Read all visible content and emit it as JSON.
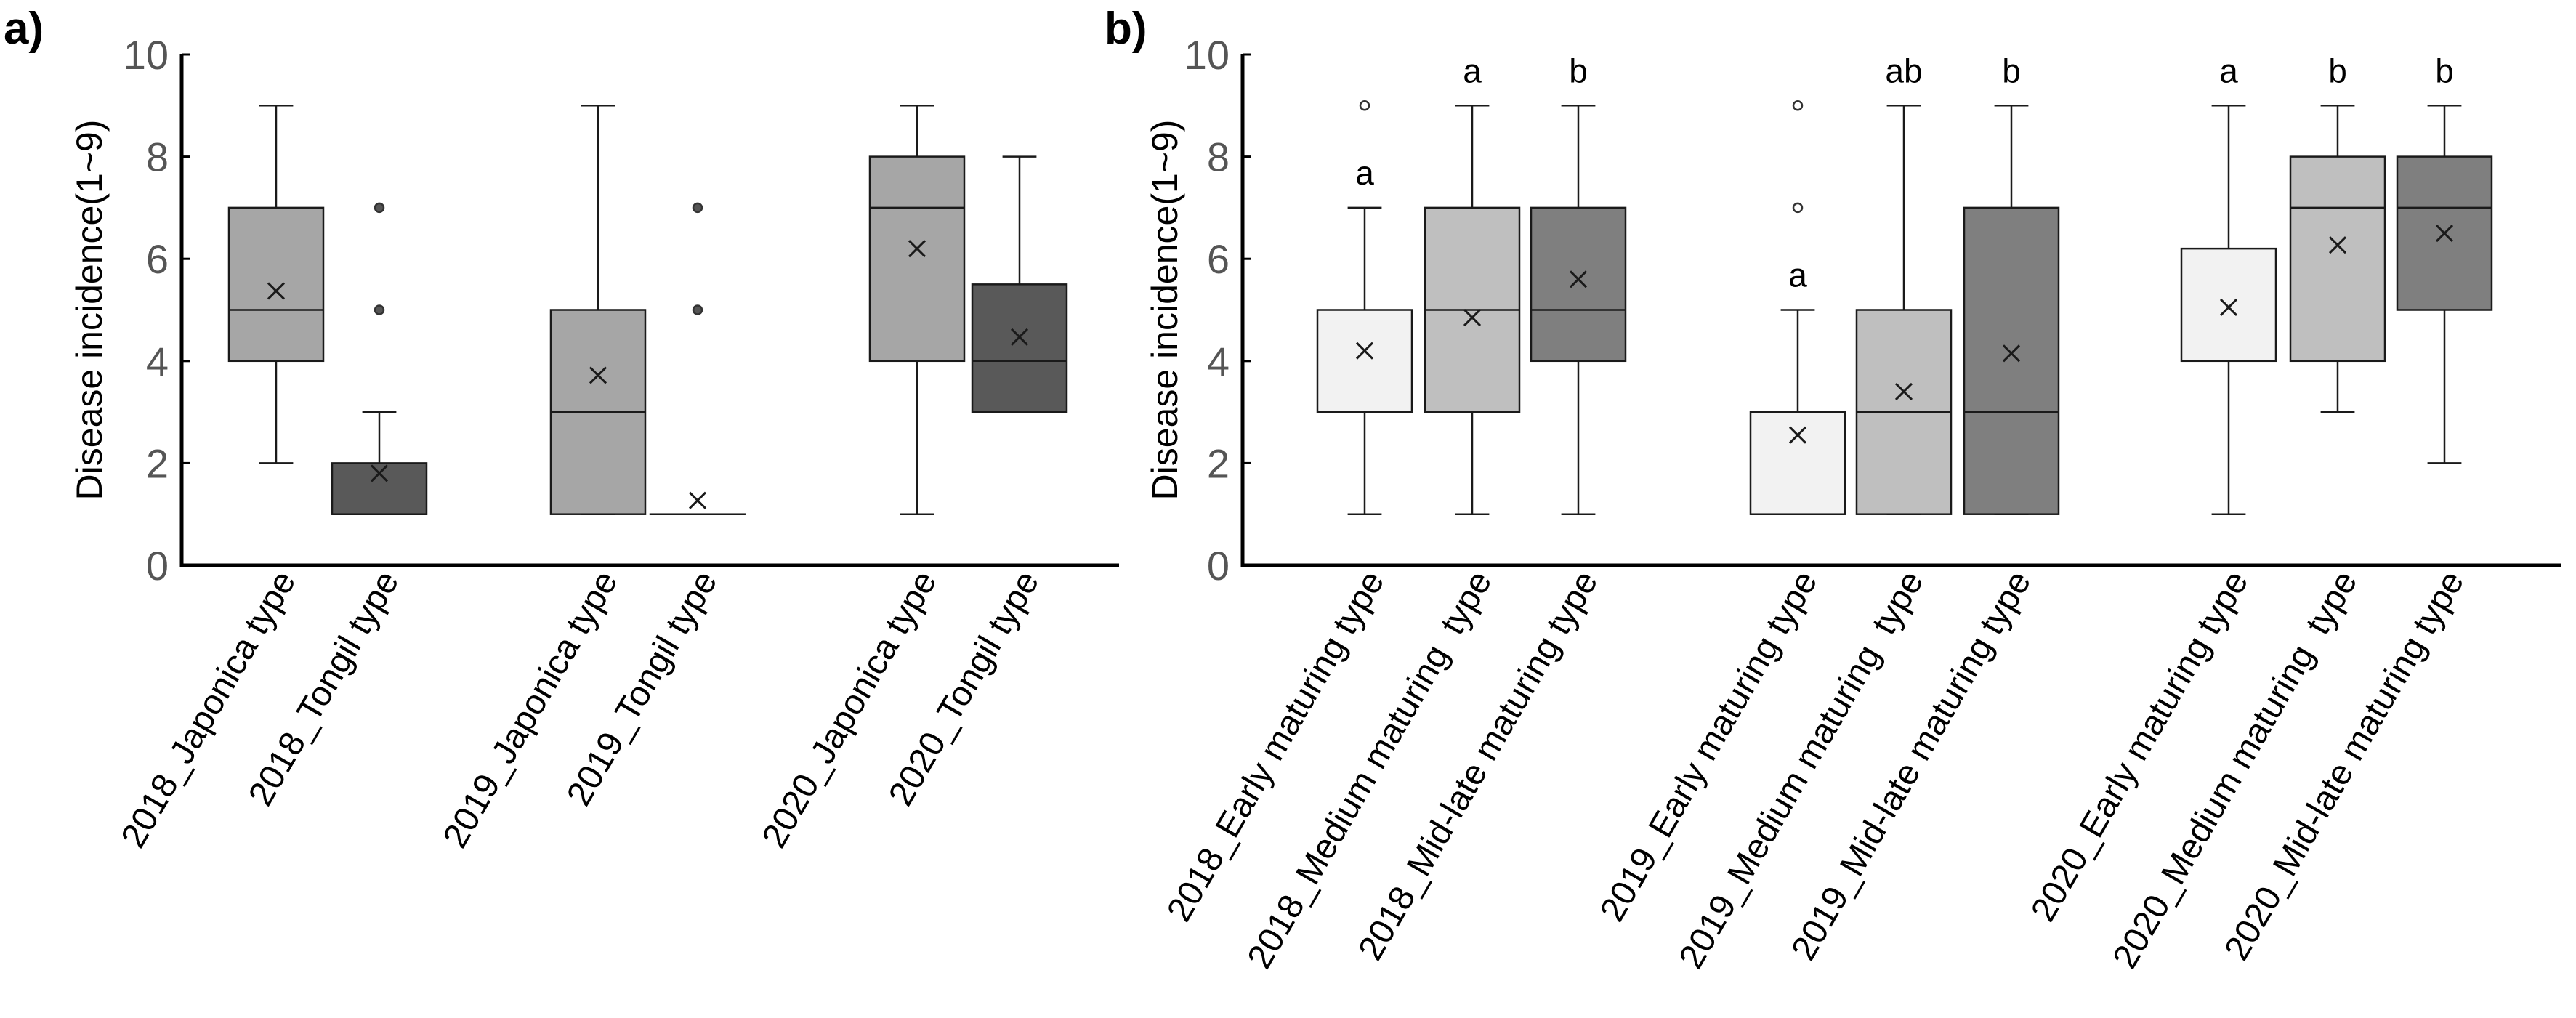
{
  "chart_data": [
    {
      "type": "box",
      "panel_label": "a)",
      "ylabel": "Disease incidence(1~9)",
      "ylim": [
        0,
        10
      ],
      "yticks": [
        "0",
        "2",
        "4",
        "6",
        "8",
        "10"
      ],
      "categories": [
        "2018_Japonica type",
        "2018_Tongil type",
        "2019_Japonica type",
        "2019_Tongil type",
        "2020_Japonica type",
        "2020_Tongil type"
      ],
      "groups": [
        [
          0,
          1
        ],
        [
          2,
          3
        ],
        [
          4,
          5
        ]
      ],
      "boxes": [
        {
          "category": "2018_Japonica type",
          "min": 2,
          "q1": 4,
          "median": 5,
          "q3": 7,
          "max": 9,
          "mean": 5.37,
          "outliers": [],
          "color": "#a6a6a6"
        },
        {
          "category": "2018_Tongil type",
          "min": 1,
          "q1": 1,
          "median": 1,
          "q3": 2,
          "max": 3,
          "mean": 1.8,
          "outliers": [
            5,
            7
          ],
          "color": "#595959"
        },
        {
          "category": "2019_Japonica type",
          "min": 1,
          "q1": 1,
          "median": 3,
          "q3": 5,
          "max": 9,
          "mean": 3.72,
          "outliers": [],
          "color": "#a6a6a6"
        },
        {
          "category": "2019_Tongil type",
          "min": 1,
          "q1": 1,
          "median": 1,
          "q3": 1,
          "max": 1,
          "mean": 1.27,
          "outliers": [
            5,
            7
          ],
          "color": "#595959"
        },
        {
          "category": "2020_Japonica type",
          "min": 1,
          "q1": 4,
          "median": 7,
          "q3": 8,
          "max": 9,
          "mean": 6.2,
          "outliers": [],
          "color": "#a6a6a6"
        },
        {
          "category": "2020_Tongil type",
          "min": 3,
          "q1": 3,
          "median": 4,
          "q3": 5.5,
          "max": 8,
          "mean": 4.47,
          "outliers": [],
          "color": "#595959"
        }
      ]
    },
    {
      "type": "box",
      "panel_label": "b)",
      "ylabel": "Disease incidence(1~9)",
      "ylim": [
        0,
        10
      ],
      "yticks": [
        "0",
        "2",
        "4",
        "6",
        "8",
        "10"
      ],
      "categories": [
        "2018_Early maturing type",
        "2018_Medium maturing  type",
        "2018_Mid-late maturing type",
        "2019_Early maturing type",
        "2019_Medium maturing  type",
        "2019_Mid-late maturing type",
        "2020_Early maturing type",
        "2020_Medium maturing  type",
        "2020_Mid-late maturing type"
      ],
      "groups": [
        [
          0,
          1,
          2
        ],
        [
          3,
          4,
          5
        ],
        [
          6,
          7,
          8
        ]
      ],
      "boxes": [
        {
          "category": "2018_Early maturing type",
          "min": 1,
          "q1": 3,
          "median": 3,
          "q3": 5,
          "max": 7,
          "mean": 4.2,
          "outliers": [
            9
          ],
          "color": "#f2f2f2",
          "letter": "a"
        },
        {
          "category": "2018_Medium maturing  type",
          "min": 1,
          "q1": 3,
          "median": 5,
          "q3": 7,
          "max": 9,
          "mean": 4.85,
          "outliers": [],
          "color": "#bfbfbf",
          "letter": "a"
        },
        {
          "category": "2018_Mid-late maturing type",
          "min": 1,
          "q1": 4,
          "median": 5,
          "q3": 7,
          "max": 9,
          "mean": 5.6,
          "outliers": [],
          "color": "#7f7f7f",
          "letter": "b"
        },
        {
          "category": "2019_Early maturing type",
          "min": 1,
          "q1": 1,
          "median": 1,
          "q3": 3,
          "max": 5,
          "mean": 2.55,
          "outliers": [
            7,
            9
          ],
          "color": "#f2f2f2",
          "letter": "a"
        },
        {
          "category": "2019_Medium maturing  type",
          "min": 1,
          "q1": 1,
          "median": 3,
          "q3": 5,
          "max": 9,
          "mean": 3.4,
          "outliers": [],
          "color": "#bfbfbf",
          "letter": "ab"
        },
        {
          "category": "2019_Mid-late maturing type",
          "min": 1,
          "q1": 1,
          "median": 3,
          "q3": 7,
          "max": 9,
          "mean": 4.15,
          "outliers": [],
          "color": "#7f7f7f",
          "letter": "b"
        },
        {
          "category": "2020_Early maturing type",
          "min": 1,
          "q1": 4,
          "median": 4,
          "q3": 6.2,
          "max": 9,
          "mean": 5.05,
          "outliers": [],
          "color": "#f2f2f2",
          "letter": "a"
        },
        {
          "category": "2020_Medium maturing  type",
          "min": 3,
          "q1": 4,
          "median": 7,
          "q3": 8,
          "max": 9,
          "mean": 6.27,
          "outliers": [],
          "color": "#bfbfbf",
          "letter": "b"
        },
        {
          "category": "2020_Mid-late maturing type",
          "min": 2,
          "q1": 5,
          "median": 7,
          "q3": 8,
          "max": 9,
          "mean": 6.5,
          "outliers": [],
          "color": "#7f7f7f",
          "letter": "b"
        }
      ]
    }
  ]
}
